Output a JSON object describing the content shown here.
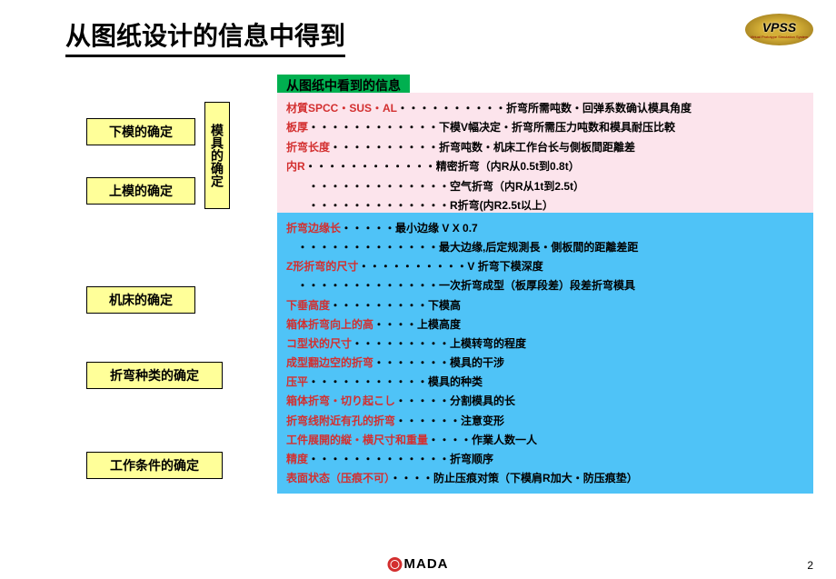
{
  "title": "从图纸设计的信息中得到",
  "logo": "VPSS",
  "logoSub": "Virtual Prototype Simulation System",
  "header": "从图纸中看到的信息",
  "buttons": {
    "b1": "下模的确定",
    "b2": "上模的确定",
    "b3": "机床的确定",
    "b4": "折弯种类的确定",
    "b5": "工作条件的确定",
    "vert": "模具的确定"
  },
  "pink": [
    {
      "r": "材質SPCC・SUS・AL",
      "d": "・・・・・・・・・・",
      "k": "折弯所需吨数・回弹系数确认模具角度"
    },
    {
      "r": "板厚",
      "d": "・・・・・・・・・・・・",
      "k": "下模V幅决定・折弯所需压力吨数和模具耐压比較"
    },
    {
      "r": "折弯长度",
      "d": "・・・・・・・・・・",
      "k": "折弯吨数・机床工作台长与側板間距離差"
    },
    {
      "r": "内R",
      "d": "・・・・・・・・・・・・",
      "k": "精密折弯（内R从0.5t到0.8t）"
    },
    {
      "r": "",
      "d": "　　・・・・・・・・・・・・・",
      "k": "空气折弯（内R从1t到2.5t）"
    },
    {
      "r": "",
      "d": "　　・・・・・・・・・・・・・",
      "k": "R折弯(内R2.5t以上）"
    }
  ],
  "blue": [
    {
      "r": "折弯边缘长",
      "d": "・・・・・",
      "k": "最小边缘  V X 0.7"
    },
    {
      "r": "",
      "d": "　・・・・・・・・・・・・・",
      "k": "最大边缘,后定规測長・側板間的距離差距"
    },
    {
      "r": "Z形折弯的尺寸",
      "d": "・・・・・・・・・・",
      "k": "V 折弯下模深度"
    },
    {
      "r": "",
      "d": "　・・・・・・・・・・・・・",
      "k": "一次折弯成型（板厚段差）段差折弯模具"
    },
    {
      "r": "下垂高度",
      "d": "・・・・・・・・・",
      "k": "下模高"
    },
    {
      "r": "箱体折弯向上的高",
      "d": "・・・・",
      "k": "上模高度"
    },
    {
      "r": "コ型状的尺寸",
      "d": "・・・・・・・・・",
      "k": "上模转弯的程度"
    },
    {
      "r": "成型翻边空的折弯",
      "d": "・・・・・・・",
      "k": "模具的干涉"
    },
    {
      "r": "压平",
      "d": "・・・・・・・・・・・",
      "k": "模具的种类"
    },
    {
      "r": "箱体折弯・切り起こし",
      "d": "・・・・・",
      "k": "分割模具的长"
    },
    {
      "r": "折弯线附近有孔的折弯",
      "d": "・・・・・・",
      "k": "注意变形"
    },
    {
      "r": "工件展開的縦・横尺寸和重量",
      "d": "・・・・",
      "k": "作業人数一人"
    },
    {
      "r": "精度",
      "d": "・・・・・・・・・・・・・",
      "k": "折弯顺序"
    },
    {
      "r": "表面状态（压痕不可）",
      "d": "・・・・",
      "k": "防止压痕对策（下模肩R加大・防压痕垫）"
    }
  ],
  "footer": "MADA",
  "page": "2"
}
